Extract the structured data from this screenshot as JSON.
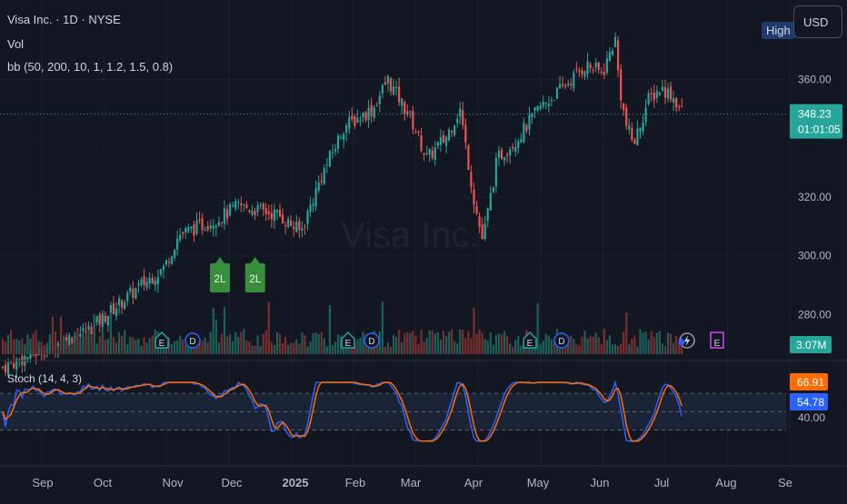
{
  "header": {
    "symbol_line": "Visa Inc. · 1D · NYSE",
    "vol_label": "Vol",
    "bb_label": "bb (50, 200, 10, 1, 1.2, 1.5, 0.8)",
    "stoch_label": "Stoch (14, 4, 3)",
    "currency": "USD",
    "high_label": "High"
  },
  "watermark": "Visa Inc.",
  "colors": {
    "background": "#131722",
    "up": "#26a69a",
    "down": "#ef5350",
    "k_line": "#2962ff",
    "d_line": "#ff6d00",
    "price_tag": "#26a69a",
    "signal": "#388e3c"
  },
  "price_axis": {
    "ticks": [
      "360.00",
      "320.00",
      "300.00",
      "280.00"
    ],
    "last_price": "348.23",
    "countdown": "01:01:05",
    "volume_tag": "3.07M"
  },
  "stoch_axis": {
    "ticks": [
      "40.00"
    ],
    "d_value": "66.91",
    "k_value": "54.78"
  },
  "time_axis": [
    "Sep",
    "Oct",
    "Nov",
    "Dec",
    "2025",
    "Feb",
    "Mar",
    "Apr",
    "May",
    "Jun",
    "Jul",
    "Aug",
    "Se"
  ],
  "signals": [
    {
      "label": "2L",
      "date": "2024-12-02"
    },
    {
      "label": "2L",
      "date": "2024-12-19"
    }
  ],
  "event_markers": [
    {
      "type": "E",
      "icon": "earnings-icon"
    },
    {
      "type": "D",
      "icon": "dividend-icon"
    },
    {
      "type": "E",
      "icon": "earnings-icon"
    },
    {
      "type": "D",
      "icon": "dividend-icon"
    },
    {
      "type": "E",
      "icon": "earnings-icon"
    },
    {
      "type": "D",
      "icon": "dividend-icon"
    },
    {
      "type": "split",
      "icon": "lightning-icon"
    },
    {
      "type": "E",
      "icon": "earnings-icon"
    }
  ],
  "chart_data": {
    "type": "candlestick",
    "price_range": [
      280,
      372
    ],
    "stoch_levels": [
      80,
      50,
      20
    ],
    "key_prices": [
      {
        "date": "2024-08-19",
        "close": 262
      },
      {
        "date": "2024-09-30",
        "close": 275
      },
      {
        "date": "2024-10-25",
        "close": 290
      },
      {
        "date": "2024-11-05",
        "close": 296
      },
      {
        "date": "2024-11-12",
        "close": 307
      },
      {
        "date": "2024-12-02",
        "close": 313
      },
      {
        "date": "2024-12-11",
        "close": 317
      },
      {
        "date": "2024-12-30",
        "close": 314
      },
      {
        "date": "2025-01-10",
        "close": 308
      },
      {
        "date": "2025-01-20",
        "close": 327
      },
      {
        "date": "2025-01-31",
        "close": 344
      },
      {
        "date": "2025-02-14",
        "close": 350
      },
      {
        "date": "2025-02-21",
        "close": 360
      },
      {
        "date": "2025-03-04",
        "close": 347
      },
      {
        "date": "2025-03-12",
        "close": 333
      },
      {
        "date": "2025-03-21",
        "close": 340
      },
      {
        "date": "2025-03-28",
        "close": 350
      },
      {
        "date": "2025-04-04",
        "close": 318
      },
      {
        "date": "2025-04-08",
        "close": 305
      },
      {
        "date": "2025-04-15",
        "close": 333
      },
      {
        "date": "2025-04-25",
        "close": 340
      },
      {
        "date": "2025-05-05",
        "close": 350
      },
      {
        "date": "2025-05-15",
        "close": 356
      },
      {
        "date": "2025-05-28",
        "close": 365
      },
      {
        "date": "2025-06-05",
        "close": 362
      },
      {
        "date": "2025-06-11",
        "close": 374
      },
      {
        "date": "2025-06-13",
        "close": 358
      },
      {
        "date": "2025-06-16",
        "close": 345
      },
      {
        "date": "2025-06-20",
        "close": 338
      },
      {
        "date": "2025-06-27",
        "close": 353
      },
      {
        "date": "2025-07-03",
        "close": 357
      },
      {
        "date": "2025-07-08",
        "close": 355
      },
      {
        "date": "2025-07-14",
        "close": 348.23
      }
    ]
  }
}
